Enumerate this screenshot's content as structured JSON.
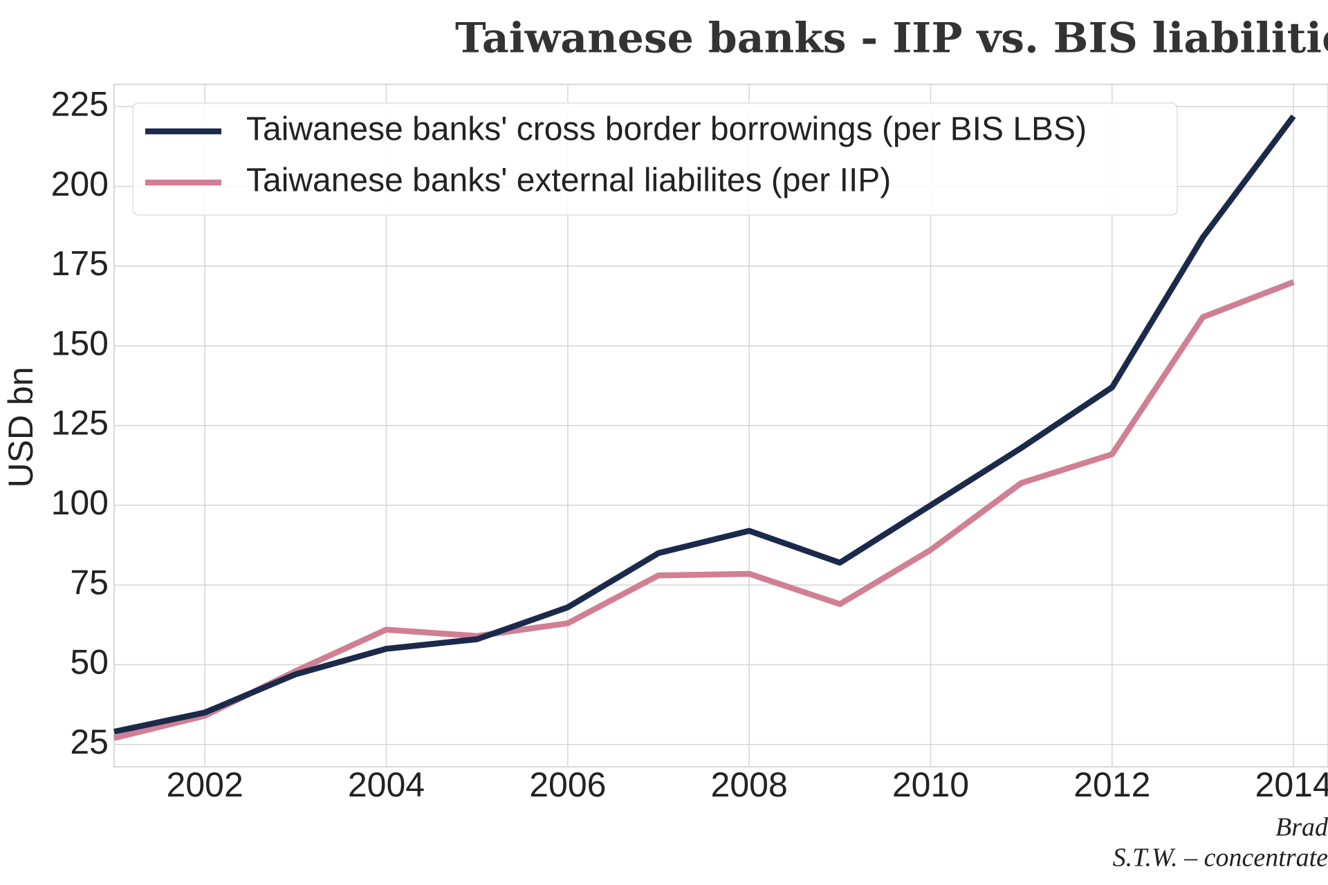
{
  "chart_data": {
    "type": "line",
    "title": "Taiwanese banks - IIP vs. BIS liabilities",
    "y_label": "USD bn",
    "x": [
      2001,
      2002,
      2003,
      2004,
      2005,
      2006,
      2007,
      2008,
      2009,
      2010,
      2011,
      2012,
      2013,
      2014
    ],
    "series": [
      {
        "name": "Taiwanese banks' cross border borrowings (per BIS LBS)",
        "color": "#1b2a4a",
        "values": [
          29,
          35,
          47,
          55,
          58,
          68,
          85,
          92,
          82,
          100,
          118,
          137,
          184,
          222
        ]
      },
      {
        "name": "Taiwanese banks' external liabilites (per IIP)",
        "color": "#d07f94",
        "values": [
          27,
          34,
          48,
          61,
          59,
          63,
          78,
          78.5,
          69,
          86,
          107,
          116,
          159,
          170
        ]
      }
    ],
    "xlim": [
      2001,
      2014.38
    ],
    "xticks": [
      2002,
      2004,
      2006,
      2008,
      2010,
      2012,
      2014
    ],
    "ylim": [
      18,
      232
    ],
    "yticks": [
      25,
      50,
      75,
      100,
      125,
      150,
      175,
      200,
      225
    ],
    "grid": true,
    "legend": "upper left",
    "footer": [
      "Brad",
      "S.T.W. – concentrate"
    ]
  }
}
